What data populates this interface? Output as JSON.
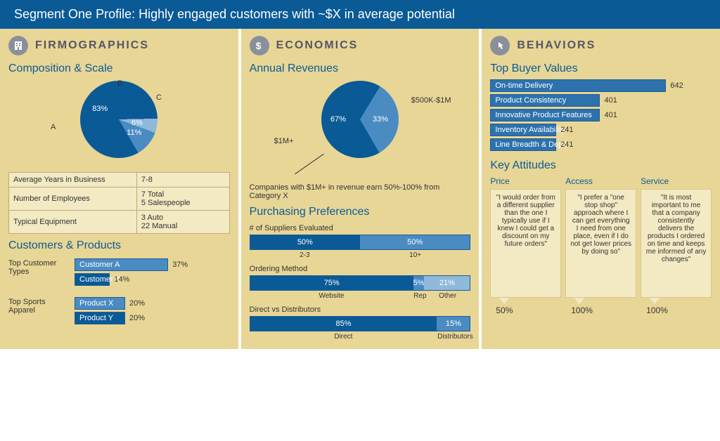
{
  "header": "Segment One Profile:  Highly engaged customers with ~$X in average potential",
  "colors": {
    "dark": "#0a5a96",
    "mid": "#4a8bc2",
    "light": "#8fb8da",
    "panel": "#e8d696"
  },
  "firmo": {
    "title": "FIRMOGRAPHICS",
    "comp_title": "Composition & Scale",
    "pie": {
      "slices": [
        {
          "label": "A",
          "pct": 83,
          "color": "#0a5a96"
        },
        {
          "label": "B",
          "pct": 6,
          "color": "#8fb8da"
        },
        {
          "label": "C",
          "pct": 11,
          "color": "#4a8bc2"
        }
      ]
    },
    "table": [
      [
        "Average Years in Business",
        "7-8"
      ],
      [
        "Number of Employees",
        "7 Total\n5 Salespeople"
      ],
      [
        "Typical Equipment",
        "3 Auto\n22 Manual"
      ]
    ],
    "cp_title": "Customers & Products",
    "cust_label": "Top Customer Types",
    "cust": [
      {
        "name": "Customer A",
        "pct": 37,
        "color": "#4a8bc2"
      },
      {
        "name": "Customer B",
        "pct": 14,
        "color": "#0a5a96"
      }
    ],
    "prod_label": "Top Sports Apparel",
    "prod": [
      {
        "name": "Product X",
        "pct": 20,
        "color": "#4a8bc2"
      },
      {
        "name": "Product Y",
        "pct": 20,
        "color": "#0a5a96"
      }
    ]
  },
  "econ": {
    "title": "ECONOMICS",
    "rev_title": "Annual Revenues",
    "pie": {
      "slices": [
        {
          "label": "$1M+",
          "pct": 67,
          "color": "#0a5a96"
        },
        {
          "label": "$500K-$1M",
          "pct": 33,
          "color": "#4a8bc2"
        }
      ]
    },
    "note": "Companies with $1M+ in revenue earn 50%-100% from Category X",
    "pp_title": "Purchasing Preferences",
    "suppliers": {
      "title": "# of Suppliers Evaluated",
      "segs": [
        {
          "pct": 50,
          "label": "2-3",
          "color": "#0a5a96"
        },
        {
          "pct": 50,
          "label": "10+",
          "color": "#4a8bc2"
        }
      ]
    },
    "ordering": {
      "title": "Ordering Method",
      "segs": [
        {
          "pct": 75,
          "label": "Website",
          "color": "#0a5a96"
        },
        {
          "pct": 5,
          "label": "Rep",
          "color": "#4a8bc2"
        },
        {
          "pct": 21,
          "label": "Other",
          "color": "#8fb8da"
        }
      ]
    },
    "direct": {
      "title": "Direct vs Distributors",
      "segs": [
        {
          "pct": 85,
          "label": "Direct",
          "color": "#0a5a96"
        },
        {
          "pct": 15,
          "label": "Distributors",
          "color": "#4a8bc2"
        }
      ]
    }
  },
  "behav": {
    "title": "BEHAVIORS",
    "tbv_title": "Top Buyer Values",
    "max": 642,
    "values": [
      {
        "name": "On-time Delivery",
        "v": 642
      },
      {
        "name": "Product Consistency",
        "v": 401
      },
      {
        "name": "Innovative Product Features",
        "v": 401
      },
      {
        "name": "Inventory Availability",
        "v": 241
      },
      {
        "name": "Line Breadth & Depth",
        "v": 241
      }
    ],
    "ka_title": "Key Attitudes",
    "quotes": [
      {
        "head": "Price",
        "pct": "50%",
        "text": "\"I would order from a different supplier than the one I typically use if I knew I could get a discount on my future orders\""
      },
      {
        "head": "Access",
        "pct": "100%",
        "text": "\"I prefer a \"one stop shop\" approach where I can get everything I need from one place, even if I do not get lower prices by doing so\""
      },
      {
        "head": "Service",
        "pct": "100%",
        "text": "\"It is most important to me that a company consistently delivers the products I ordered on time and keeps me informed of any changes\""
      }
    ]
  }
}
